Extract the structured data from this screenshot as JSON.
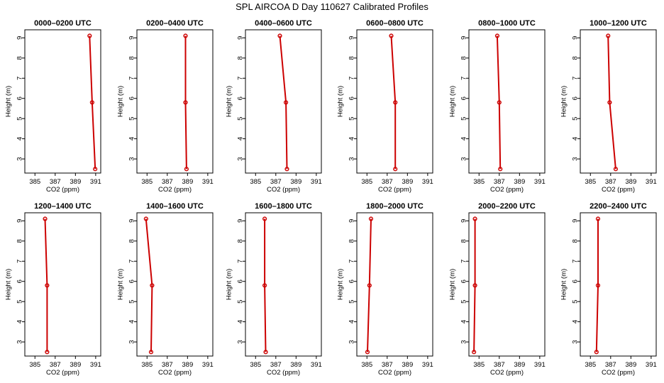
{
  "title": "SPL AIRCOA D  Day 110627  Calibrated Profiles",
  "series_color": "#cc0000",
  "chart_data": [
    {
      "type": "line",
      "title": "0000–0200 UTC",
      "xlabel": "CO2 (ppm)",
      "ylabel": "Height (m)",
      "xticks": [
        "385",
        "387",
        "389",
        "391"
      ],
      "yticks": [
        "3",
        "4",
        "5",
        "6",
        "7",
        "8",
        "9"
      ],
      "xlim": [
        384,
        391.5
      ],
      "ylim": [
        2.3,
        9.4
      ],
      "points": [
        {
          "x": 390.4,
          "y": 9.1
        },
        {
          "x": 390.65,
          "y": 5.8
        },
        {
          "x": 390.95,
          "y": 2.5
        }
      ]
    },
    {
      "type": "line",
      "title": "0200–0400 UTC",
      "xlabel": "CO2 (ppm)",
      "ylabel": "Height (m)",
      "xticks": [
        "385",
        "387",
        "389",
        "391"
      ],
      "yticks": [
        "3",
        "4",
        "5",
        "6",
        "7",
        "8",
        "9"
      ],
      "xlim": [
        384,
        391.5
      ],
      "ylim": [
        2.3,
        9.4
      ],
      "points": [
        {
          "x": 388.8,
          "y": 9.1
        },
        {
          "x": 388.8,
          "y": 5.8
        },
        {
          "x": 388.9,
          "y": 2.5
        }
      ]
    },
    {
      "type": "line",
      "title": "0400–0600 UTC",
      "xlabel": "CO2 (ppm)",
      "ylabel": "Height (m)",
      "xticks": [
        "385",
        "387",
        "389",
        "391"
      ],
      "yticks": [
        "3",
        "4",
        "5",
        "6",
        "7",
        "8",
        "9"
      ],
      "xlim": [
        384,
        391.5
      ],
      "ylim": [
        2.3,
        9.4
      ],
      "points": [
        {
          "x": 387.4,
          "y": 9.1
        },
        {
          "x": 388.0,
          "y": 5.8
        },
        {
          "x": 388.1,
          "y": 2.5
        }
      ]
    },
    {
      "type": "line",
      "title": "0600–0800 UTC",
      "xlabel": "CO2 (ppm)",
      "ylabel": "Height (m)",
      "xticks": [
        "385",
        "387",
        "389",
        "391"
      ],
      "yticks": [
        "3",
        "4",
        "5",
        "6",
        "7",
        "8",
        "9"
      ],
      "xlim": [
        384,
        391.5
      ],
      "ylim": [
        2.3,
        9.4
      ],
      "points": [
        {
          "x": 387.4,
          "y": 9.1
        },
        {
          "x": 387.8,
          "y": 5.8
        },
        {
          "x": 387.8,
          "y": 2.5
        }
      ]
    },
    {
      "type": "line",
      "title": "0800–1000 UTC",
      "xlabel": "CO2 (ppm)",
      "ylabel": "Height (m)",
      "xticks": [
        "385",
        "387",
        "389",
        "391"
      ],
      "yticks": [
        "3",
        "4",
        "5",
        "6",
        "7",
        "8",
        "9"
      ],
      "xlim": [
        384,
        391.5
      ],
      "ylim": [
        2.3,
        9.4
      ],
      "points": [
        {
          "x": 386.8,
          "y": 9.1
        },
        {
          "x": 387.0,
          "y": 5.8
        },
        {
          "x": 387.1,
          "y": 2.5
        }
      ]
    },
    {
      "type": "line",
      "title": "1000–1200 UTC",
      "xlabel": "CO2 (ppm)",
      "ylabel": "Height (m)",
      "xticks": [
        "385",
        "387",
        "389",
        "391"
      ],
      "yticks": [
        "3",
        "4",
        "5",
        "6",
        "7",
        "8",
        "9"
      ],
      "xlim": [
        384,
        391.5
      ],
      "ylim": [
        2.3,
        9.4
      ],
      "points": [
        {
          "x": 386.75,
          "y": 9.1
        },
        {
          "x": 386.9,
          "y": 5.8
        },
        {
          "x": 387.5,
          "y": 2.5
        }
      ]
    },
    {
      "type": "line",
      "title": "1200–1400 UTC",
      "xlabel": "CO2 (ppm)",
      "ylabel": "Height (m)",
      "xticks": [
        "385",
        "387",
        "389",
        "391"
      ],
      "yticks": [
        "3",
        "4",
        "5",
        "6",
        "7",
        "8",
        "9"
      ],
      "xlim": [
        384,
        391.5
      ],
      "ylim": [
        2.3,
        9.4
      ],
      "points": [
        {
          "x": 386.0,
          "y": 9.1
        },
        {
          "x": 386.2,
          "y": 5.8
        },
        {
          "x": 386.2,
          "y": 2.5
        }
      ]
    },
    {
      "type": "line",
      "title": "1400–1600 UTC",
      "xlabel": "CO2 (ppm)",
      "ylabel": "Height (m)",
      "xticks": [
        "385",
        "387",
        "389",
        "391"
      ],
      "yticks": [
        "3",
        "4",
        "5",
        "6",
        "7",
        "8",
        "9"
      ],
      "xlim": [
        384,
        391.5
      ],
      "ylim": [
        2.3,
        9.4
      ],
      "points": [
        {
          "x": 384.9,
          "y": 9.1
        },
        {
          "x": 385.5,
          "y": 5.8
        },
        {
          "x": 385.4,
          "y": 2.5
        }
      ]
    },
    {
      "type": "line",
      "title": "1600–1800 UTC",
      "xlabel": "CO2 (ppm)",
      "ylabel": "Height (m)",
      "xticks": [
        "385",
        "387",
        "389",
        "391"
      ],
      "yticks": [
        "3",
        "4",
        "5",
        "6",
        "7",
        "8",
        "9"
      ],
      "xlim": [
        384,
        391.5
      ],
      "ylim": [
        2.3,
        9.4
      ],
      "points": [
        {
          "x": 385.9,
          "y": 9.1
        },
        {
          "x": 385.9,
          "y": 5.8
        },
        {
          "x": 386.0,
          "y": 2.5
        }
      ]
    },
    {
      "type": "line",
      "title": "1800–2000 UTC",
      "xlabel": "CO2 (ppm)",
      "ylabel": "Height (m)",
      "xticks": [
        "385",
        "387",
        "389",
        "391"
      ],
      "yticks": [
        "3",
        "4",
        "5",
        "6",
        "7",
        "8",
        "9"
      ],
      "xlim": [
        384,
        391.5
      ],
      "ylim": [
        2.3,
        9.4
      ],
      "points": [
        {
          "x": 385.4,
          "y": 9.1
        },
        {
          "x": 385.25,
          "y": 5.8
        },
        {
          "x": 385.05,
          "y": 2.5
        }
      ]
    },
    {
      "type": "line",
      "title": "2000–2200 UTC",
      "xlabel": "CO2 (ppm)",
      "ylabel": "Height (m)",
      "xticks": [
        "385",
        "387",
        "389",
        "391"
      ],
      "yticks": [
        "3",
        "4",
        "5",
        "6",
        "7",
        "8",
        "9"
      ],
      "xlim": [
        384,
        391.5
      ],
      "ylim": [
        2.3,
        9.4
      ],
      "points": [
        {
          "x": 384.6,
          "y": 9.1
        },
        {
          "x": 384.6,
          "y": 5.8
        },
        {
          "x": 384.5,
          "y": 2.5
        }
      ]
    },
    {
      "type": "line",
      "title": "2200–2400 UTC",
      "xlabel": "CO2 (ppm)",
      "ylabel": "Height (m)",
      "xticks": [
        "385",
        "387",
        "389",
        "391"
      ],
      "yticks": [
        "3",
        "4",
        "5",
        "6",
        "7",
        "8",
        "9"
      ],
      "xlim": [
        384,
        391.5
      ],
      "ylim": [
        2.3,
        9.4
      ],
      "points": [
        {
          "x": 385.75,
          "y": 9.1
        },
        {
          "x": 385.75,
          "y": 5.8
        },
        {
          "x": 385.6,
          "y": 2.5
        }
      ]
    }
  ]
}
